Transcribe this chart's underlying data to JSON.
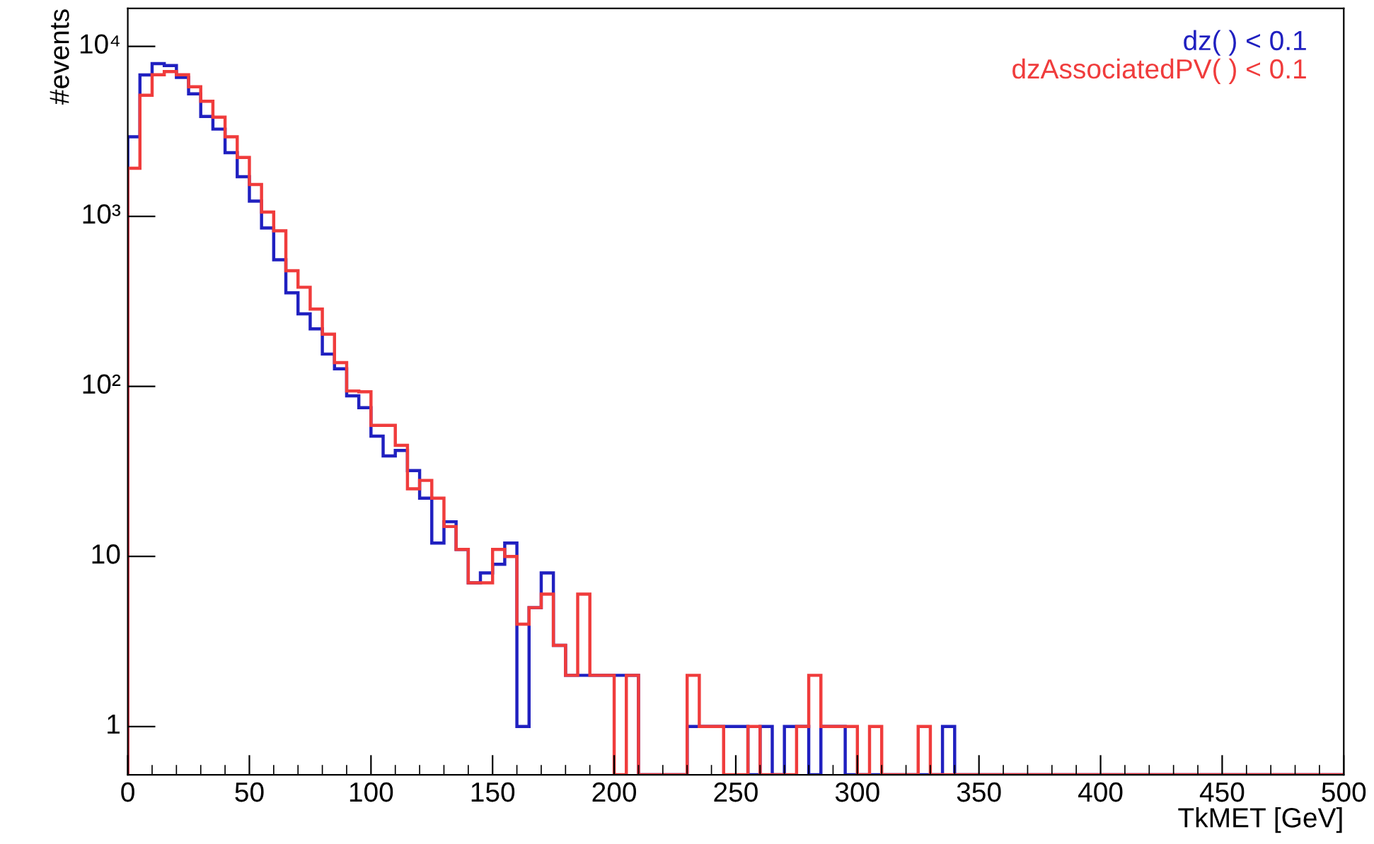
{
  "chart_data": {
    "type": "histogram",
    "xlabel": "TkMET [GeV]",
    "ylabel": "#events",
    "bins": [
      0,
      5,
      10,
      15,
      20,
      25,
      30,
      35,
      40,
      45,
      50,
      55,
      60,
      65,
      70,
      75,
      80,
      85,
      90,
      95,
      100,
      105,
      110,
      115,
      120,
      125,
      130,
      135,
      140,
      145,
      150,
      155,
      160,
      165,
      170,
      175,
      180,
      185,
      190,
      195,
      200,
      205,
      210,
      215,
      220,
      225,
      230,
      235,
      240,
      245,
      250,
      255,
      260,
      265,
      270,
      275,
      280,
      285,
      290,
      295,
      300,
      305,
      310,
      315,
      320,
      325,
      330,
      335,
      340,
      345,
      350,
      355,
      360,
      365,
      370,
      375,
      380,
      385,
      390,
      395,
      400,
      405,
      410,
      415,
      420,
      425,
      430,
      435,
      440,
      445,
      450,
      455,
      460,
      465,
      470,
      475,
      480,
      485,
      490,
      495,
      500
    ],
    "series": [
      {
        "name": "dz( ) < 0.1",
        "color": "#2020c0",
        "values": [
          2940,
          6790,
          7910,
          7700,
          6570,
          5250,
          3870,
          3260,
          2370,
          1710,
          1230,
          855,
          555,
          355,
          267,
          218,
          155,
          127,
          88,
          75,
          51,
          39,
          42,
          32,
          22,
          12,
          16,
          11,
          7,
          8,
          9,
          12,
          1,
          5,
          8,
          3,
          2,
          2,
          2,
          2,
          2,
          2,
          null,
          null,
          null,
          null,
          1,
          1,
          1,
          1,
          1,
          null,
          1,
          null,
          1,
          1,
          null,
          1,
          1,
          null,
          null,
          null,
          null,
          null,
          null,
          null,
          null,
          1,
          null,
          null,
          null,
          null,
          null,
          null,
          null,
          null,
          null,
          null,
          null,
          null,
          null,
          null,
          null,
          null,
          null,
          null,
          null,
          null,
          null,
          null,
          null,
          null,
          null,
          null,
          null,
          null,
          null,
          null,
          null,
          null
        ]
      },
      {
        "name": "dzAssociatedPV( ) < 0.1",
        "color": "#f03c3c",
        "values": [
          1920,
          5150,
          6800,
          7100,
          6800,
          5780,
          4750,
          3830,
          2940,
          2220,
          1540,
          1060,
          822,
          479,
          383,
          285,
          203,
          138,
          94,
          93,
          59,
          59,
          45,
          25,
          28,
          22,
          15,
          11,
          7,
          7,
          11,
          10,
          4,
          5,
          6,
          3,
          2,
          6,
          2,
          2,
          null,
          2,
          null,
          null,
          null,
          null,
          2,
          1,
          1,
          null,
          null,
          1,
          null,
          null,
          null,
          1,
          2,
          1,
          1,
          1,
          null,
          1,
          null,
          null,
          null,
          1,
          null,
          null,
          null,
          null,
          null,
          null,
          null,
          null,
          null,
          null,
          null,
          null,
          null,
          null,
          null,
          null,
          null,
          null,
          null,
          null,
          null,
          null,
          null,
          null,
          null,
          null,
          null,
          null,
          null,
          null,
          null,
          null,
          null,
          null
        ]
      }
    ],
    "log": "y",
    "xlim": [
      0,
      500
    ],
    "xticks": [
      0,
      50,
      100,
      150,
      200,
      250,
      300,
      350,
      400,
      450,
      500
    ],
    "ylim": [
      0.52,
      16700
    ],
    "yticks": [
      1,
      10,
      {
        "value": 100,
        "label": "10²"
      },
      {
        "value": 1000,
        "label": "10³"
      },
      {
        "value": 10000,
        "label": "10⁴"
      }
    ]
  }
}
